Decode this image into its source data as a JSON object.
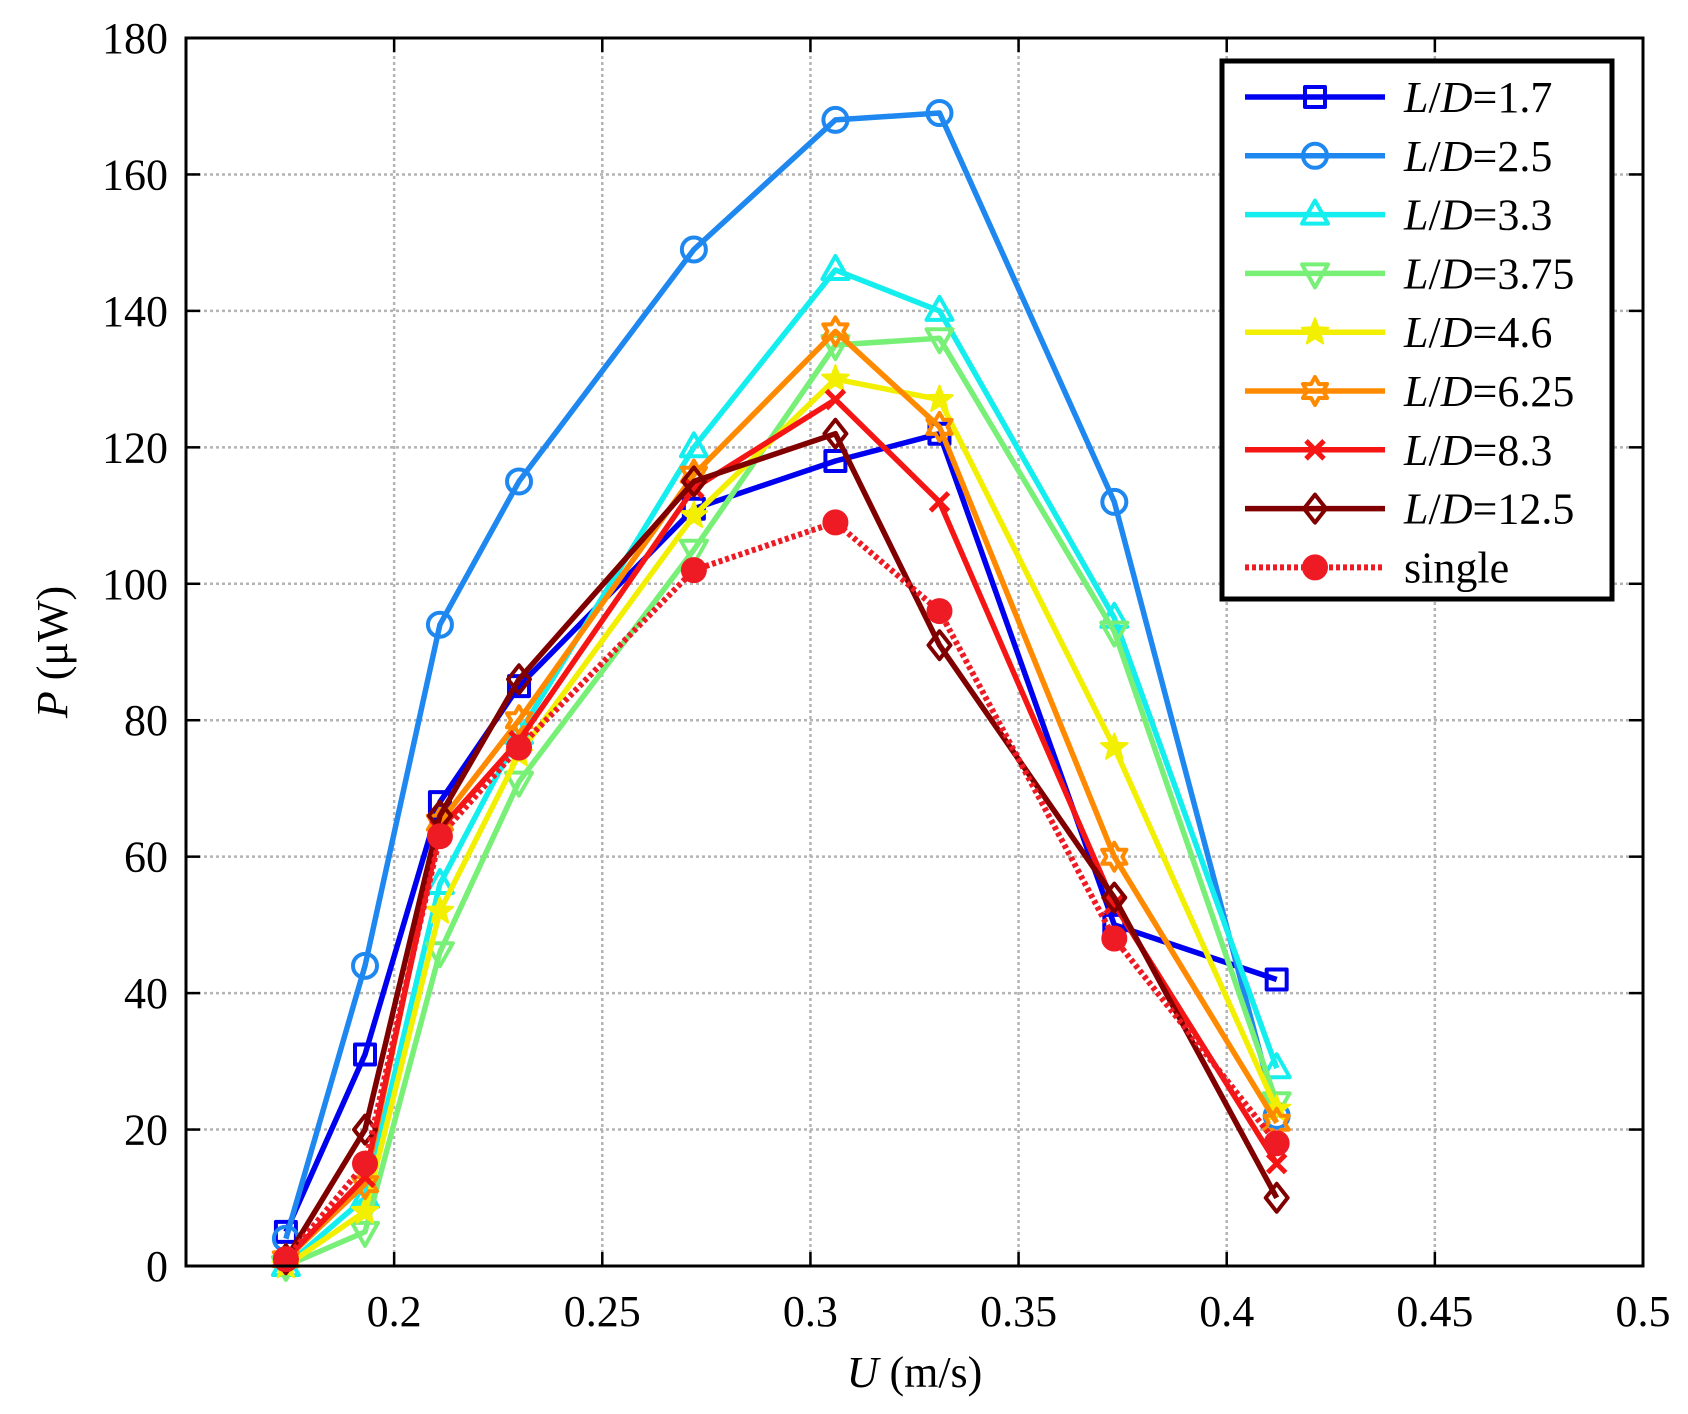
{
  "chart_data": {
    "type": "line",
    "x": [
      0.174,
      0.193,
      0.211,
      0.23,
      0.272,
      0.306,
      0.331,
      0.373,
      0.412
    ],
    "series": [
      {
        "name": "L/D=1.7",
        "color": "#0000f0",
        "marker": "square",
        "line_style": "solid",
        "values": [
          5,
          31,
          68,
          85,
          111,
          118,
          122,
          50,
          42
        ]
      },
      {
        "name": "L/D=2.5",
        "color": "#1e88f0",
        "marker": "circle",
        "line_style": "solid",
        "values": [
          4,
          44,
          94,
          115,
          149,
          168,
          169,
          112,
          22
        ]
      },
      {
        "name": "L/D=3.3",
        "color": "#14eeee",
        "marker": "triangle-up",
        "line_style": "solid",
        "values": [
          0,
          10,
          56,
          78,
          120,
          146,
          140,
          95,
          29
        ]
      },
      {
        "name": "L/D=3.75",
        "color": "#78f078",
        "marker": "triangle-down",
        "line_style": "solid",
        "values": [
          0,
          5,
          46,
          71,
          105,
          135,
          136,
          93,
          24
        ]
      },
      {
        "name": "L/D=4.6",
        "color": "#f2f000",
        "marker": "pentagram",
        "line_style": "solid",
        "values": [
          0,
          8,
          52,
          75,
          110,
          130,
          127,
          76,
          23
        ]
      },
      {
        "name": "L/D=6.25",
        "color": "#ff8a00",
        "marker": "hexagram",
        "line_style": "solid",
        "values": [
          1,
          12,
          65,
          80,
          116,
          137,
          123,
          60,
          21
        ]
      },
      {
        "name": "L/D=8.3",
        "color": "#f51515",
        "marker": "x",
        "line_style": "solid",
        "values": [
          1,
          13,
          64,
          77,
          114,
          127,
          112,
          53,
          15
        ]
      },
      {
        "name": "L/D=12.5",
        "color": "#800000",
        "marker": "diamond",
        "line_style": "solid",
        "values": [
          1,
          20,
          66,
          86,
          115,
          122,
          91,
          54,
          10
        ]
      },
      {
        "name": "single",
        "color": "#ee1b24",
        "marker": "filled-circle",
        "line_style": "dotted",
        "values": [
          1,
          15,
          63,
          76,
          102,
          109,
          96,
          48,
          18
        ]
      }
    ],
    "xlabel": "U (m/s)",
    "ylabel": "P (μW)",
    "xlim": [
      0.15,
      0.5
    ],
    "ylim": [
      0,
      180
    ],
    "xticks": [
      0.2,
      0.25,
      0.3,
      0.35,
      0.4,
      0.45,
      0.5
    ],
    "yticks": [
      0,
      20,
      40,
      60,
      80,
      100,
      120,
      140,
      160,
      180
    ],
    "grid": true,
    "legend": "top-right"
  }
}
